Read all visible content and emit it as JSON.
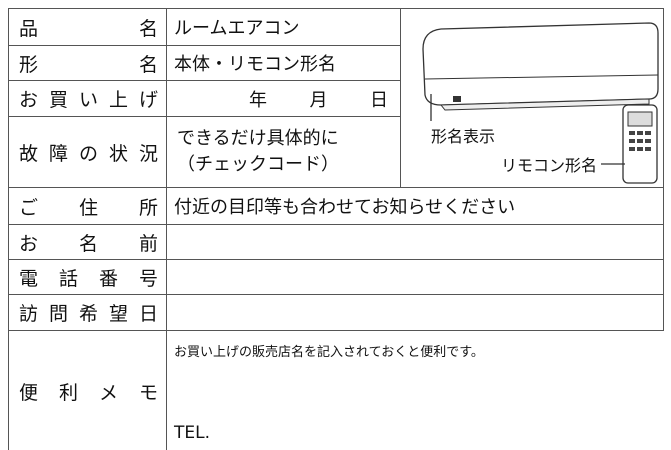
{
  "form": {
    "rows": [
      {
        "label": "品 名",
        "value": "ルームエアコン"
      },
      {
        "label": "形 名",
        "value": "本体・リモコン形名"
      },
      {
        "label": "お買い上げ",
        "date_units": [
          "年",
          "月",
          "日"
        ]
      },
      {
        "label": "故障の状況",
        "lines": [
          "できるだけ具体的に",
          "（チェックコード）"
        ]
      },
      {
        "label": "ご 住 所",
        "value": "付近の目印等も合わせてお知らせください"
      },
      {
        "label": "お 名 前"
      },
      {
        "label": "電 話 番 号"
      },
      {
        "label": "訪問希望日"
      },
      {
        "label": "便 利 メ モ",
        "lines": [
          "お買い上げの販売店名を記入されておくと便利です。",
          "TEL."
        ]
      }
    ],
    "illustration": {
      "model_label": "形名表示",
      "remote_label": "リモコン形名"
    }
  }
}
